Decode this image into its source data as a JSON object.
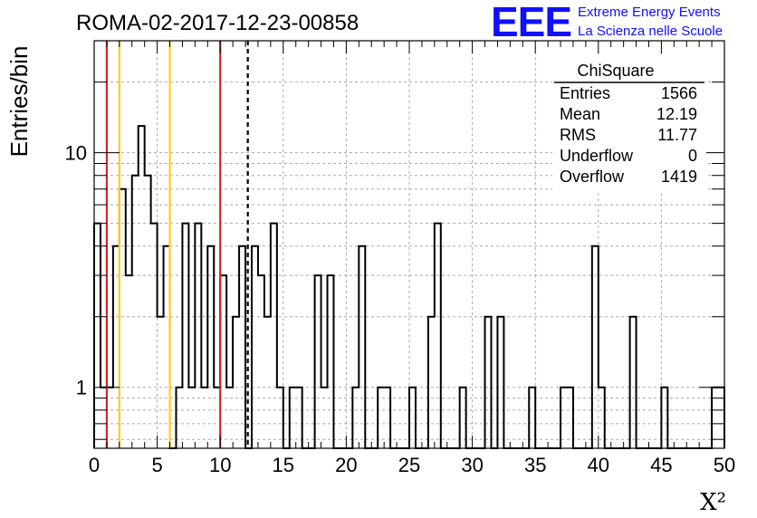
{
  "header": {
    "title": "ROMA-02-2017-12-23-00858",
    "logo_text": "EEE",
    "logo_line1": "Extreme Energy Events",
    "logo_line2": "La Scienza nelle Scuole"
  },
  "stats_box": {
    "name": "ChiSquare",
    "rows": [
      {
        "label": "Entries",
        "value": "1566"
      },
      {
        "label": "Mean",
        "value": "12.19"
      },
      {
        "label": "RMS",
        "value": "11.77"
      },
      {
        "label": "Underflow",
        "value": "0"
      },
      {
        "label": "Overflow",
        "value": "1419"
      }
    ]
  },
  "chart_data": {
    "type": "histogram",
    "title": "ROMA-02-2017-12-23-00858",
    "xlabel": "X²",
    "ylabel": "Entries/bin",
    "x_scale": "linear",
    "y_scale": "log",
    "xlim": [
      0,
      50
    ],
    "ylim": [
      0.55,
      30
    ],
    "x_ticks": [
      0,
      5,
      10,
      15,
      20,
      25,
      30,
      35,
      40,
      45,
      50
    ],
    "y_ticks": [
      1,
      10
    ],
    "grid": true,
    "bin_width": 0.5,
    "bins": [
      [
        0.0,
        5
      ],
      [
        0.5,
        1
      ],
      [
        1.0,
        1
      ],
      [
        1.5,
        4
      ],
      [
        2.0,
        7
      ],
      [
        2.5,
        3
      ],
      [
        3.0,
        8
      ],
      [
        3.5,
        13
      ],
      [
        4.0,
        8
      ],
      [
        4.5,
        5
      ],
      [
        5.0,
        2
      ],
      [
        5.5,
        4
      ],
      [
        6.5,
        1
      ],
      [
        7.0,
        5
      ],
      [
        7.5,
        1
      ],
      [
        8.0,
        5
      ],
      [
        8.5,
        1
      ],
      [
        9.0,
        4
      ],
      [
        9.5,
        1
      ],
      [
        10.0,
        3
      ],
      [
        10.5,
        1
      ],
      [
        11.0,
        2
      ],
      [
        11.5,
        4
      ],
      [
        12.5,
        4
      ],
      [
        13.0,
        3
      ],
      [
        13.5,
        2
      ],
      [
        14.0,
        5
      ],
      [
        14.5,
        1
      ],
      [
        15.5,
        1
      ],
      [
        16.0,
        1
      ],
      [
        17.5,
        3
      ],
      [
        18.0,
        1
      ],
      [
        18.5,
        3
      ],
      [
        20.5,
        1
      ],
      [
        21.0,
        4
      ],
      [
        22.5,
        1
      ],
      [
        23.0,
        1
      ],
      [
        25.0,
        1
      ],
      [
        26.5,
        2
      ],
      [
        27.0,
        5
      ],
      [
        29.0,
        1
      ],
      [
        31.0,
        2
      ],
      [
        32.0,
        2
      ],
      [
        34.5,
        1
      ],
      [
        37.0,
        1
      ],
      [
        37.5,
        1
      ],
      [
        39.5,
        4
      ],
      [
        40.0,
        1
      ],
      [
        42.5,
        2
      ],
      [
        45.0,
        1
      ],
      [
        49.0,
        1
      ],
      [
        49.5,
        1
      ]
    ],
    "vertical_lines": [
      {
        "x": 1.0,
        "color": "#dd2222",
        "style": "solid"
      },
      {
        "x": 2.0,
        "color": "#ffcc22",
        "style": "solid"
      },
      {
        "x": 6.0,
        "color": "#ffcc22",
        "style": "solid"
      },
      {
        "x": 10.0,
        "color": "#dd2222",
        "style": "solid"
      },
      {
        "x": 12.19,
        "color": "#000000",
        "style": "dashed"
      }
    ],
    "line_color": "#000000"
  }
}
